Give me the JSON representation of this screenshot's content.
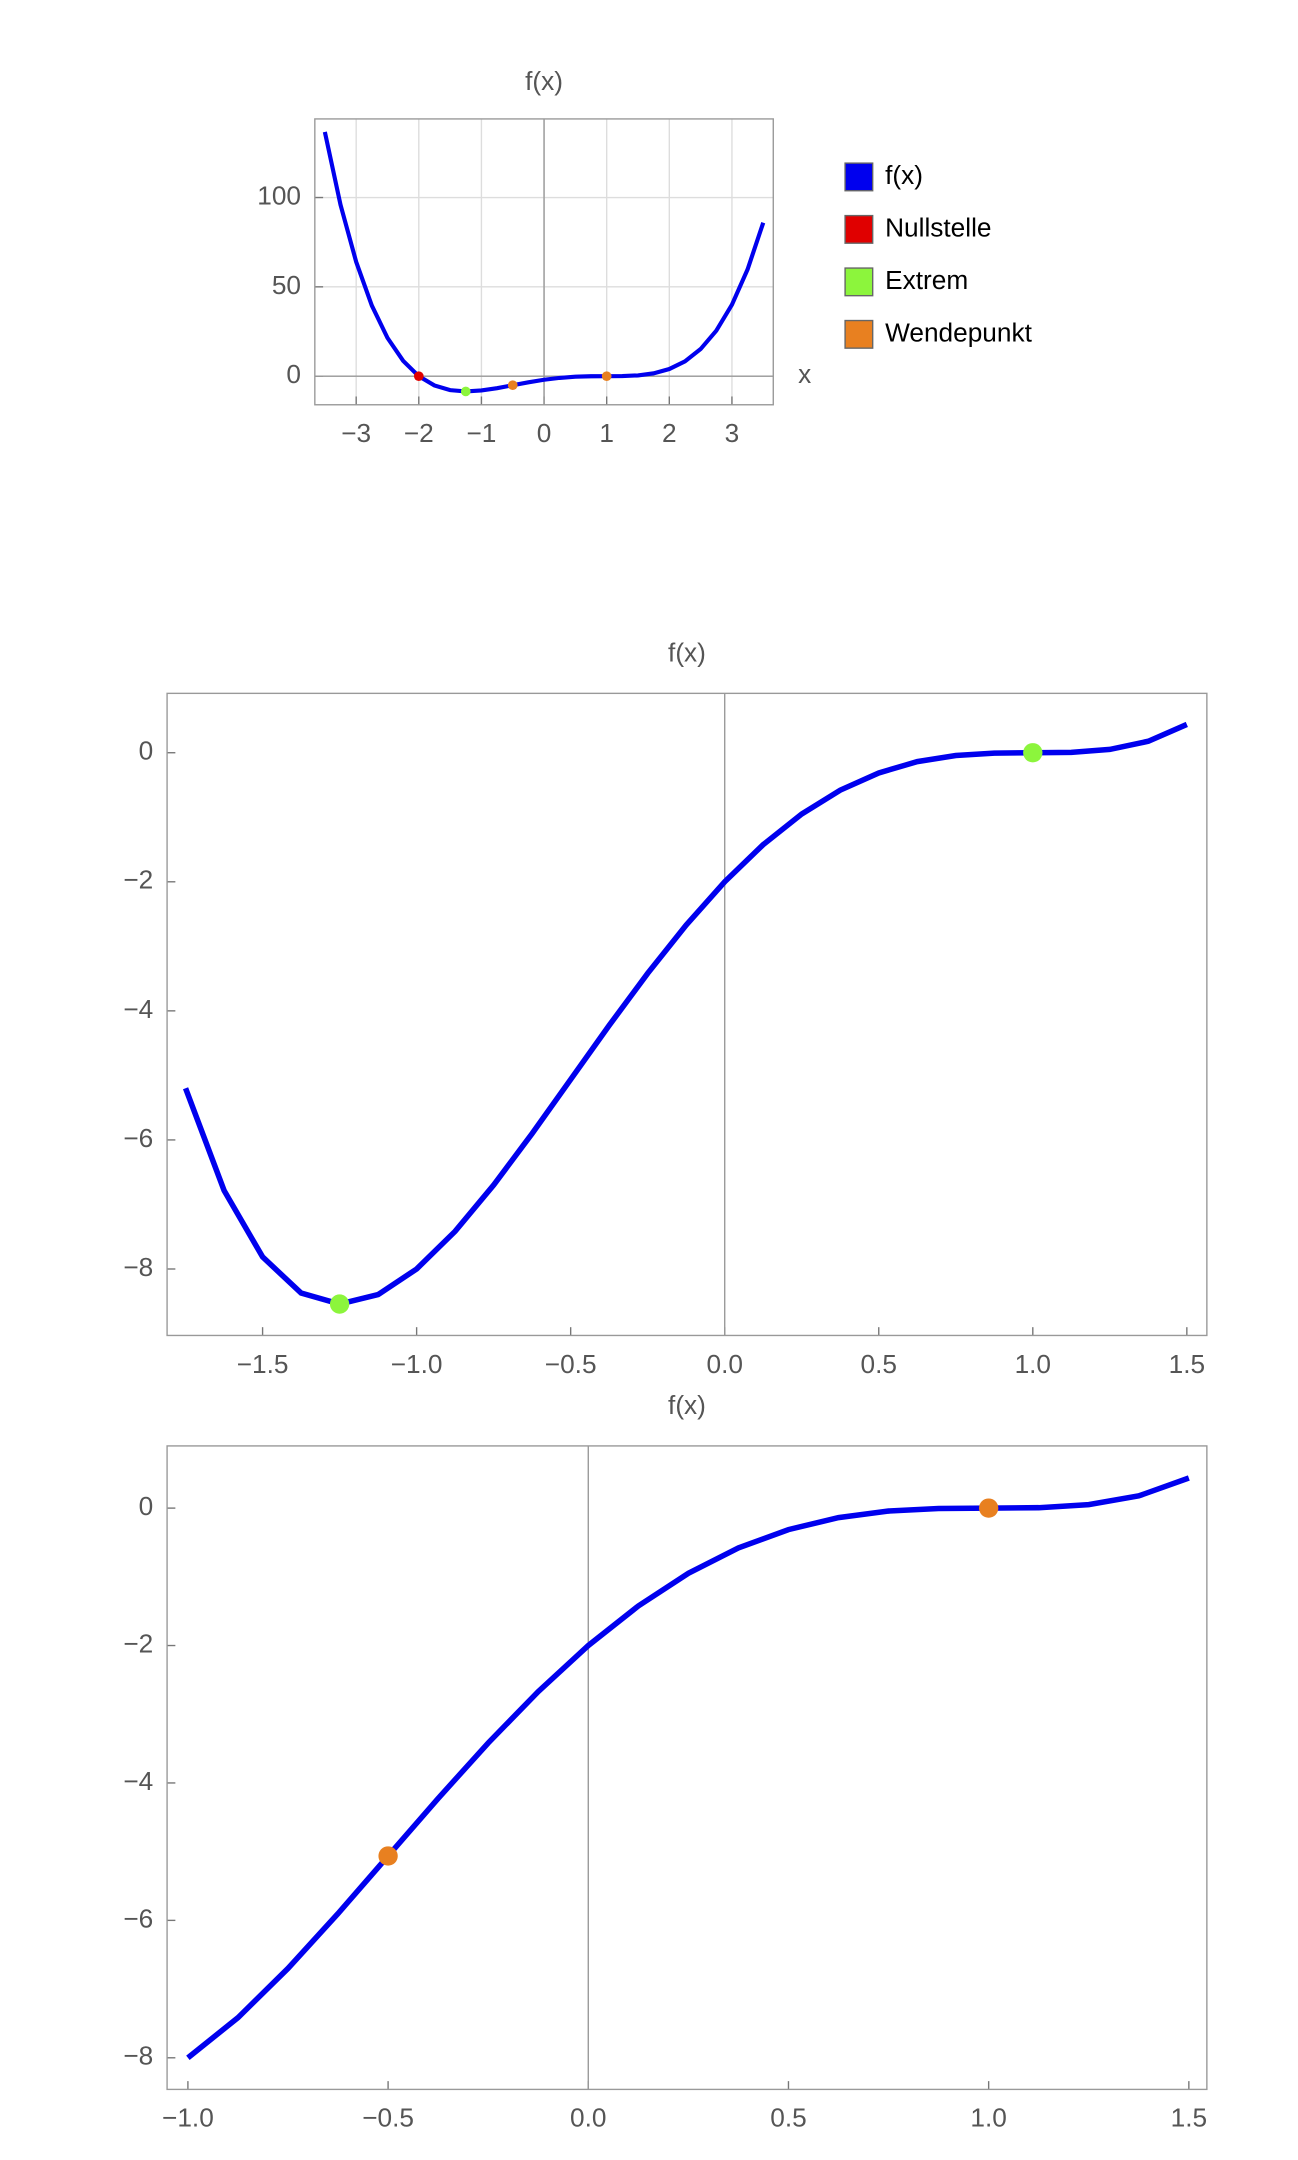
{
  "chart_data": [
    {
      "type": "line",
      "title": "f(x)",
      "x_label": "x",
      "x": [
        -3.5,
        -3.25,
        -3,
        -2.75,
        -2.5,
        -2.25,
        -2,
        -1.75,
        -1.5,
        -1.25,
        -1,
        -0.75,
        -0.5,
        -0.25,
        0,
        0.25,
        0.5,
        0.75,
        1,
        1.25,
        1.5,
        1.75,
        2,
        2.25,
        2.5,
        2.75,
        3,
        3.25,
        3.5
      ],
      "series": [
        {
          "name": "f(x)",
          "color": "#0000ee",
          "values": [
            136.688,
            95.957,
            64,
            39.551,
            21.438,
            8.582,
            0,
            -5.199,
            -7.813,
            -8.543,
            -8,
            -6.699,
            -5.063,
            -3.418,
            -2,
            -0.949,
            -0.313,
            -0.043,
            0,
            0.051,
            0.438,
            1.582,
            4,
            8.301,
            15.188,
            25.457,
            40,
            59.801,
            85.938
          ]
        }
      ],
      "points": [
        {
          "name": "Nullstelle",
          "color": "#e00000",
          "x": [
            -2
          ],
          "values": [
            0
          ]
        },
        {
          "name": "Extrem",
          "color": "#8cf53c",
          "x": [
            -1.25
          ],
          "values": [
            -8.543
          ]
        },
        {
          "name": "Wendepunkt",
          "color": "#e88020",
          "x": [
            -0.5,
            1
          ],
          "values": [
            -5.063,
            0
          ]
        }
      ],
      "xlim": [
        -3.66,
        3.66
      ],
      "ylim": [
        -16,
        144
      ],
      "xticks": [
        {
          "value": -3,
          "label": "−3"
        },
        {
          "value": -2,
          "label": "−2"
        },
        {
          "value": -1,
          "label": "−1"
        },
        0,
        1,
        2,
        3
      ],
      "yticks": [
        0,
        50,
        100
      ],
      "grid": true,
      "legend": "right"
    },
    {
      "type": "line",
      "title": "f(x)",
      "x": [
        -1.75,
        -1.625,
        -1.5,
        -1.375,
        -1.25,
        -1.125,
        -1,
        -0.875,
        -0.75,
        -0.625,
        -0.5,
        -0.375,
        -0.25,
        -0.125,
        0,
        0.125,
        0.25,
        0.375,
        0.5,
        0.625,
        0.75,
        0.875,
        1,
        1.125,
        1.25,
        1.375,
        1.5
      ],
      "series": [
        {
          "color": "#0000ee",
          "values": [
            -5.199,
            -6.783,
            -7.813,
            -8.373,
            -8.543,
            -8.397,
            -8,
            -7.416,
            -6.699,
            -5.9,
            -5.063,
            -4.225,
            -3.418,
            -2.67,
            -2,
            -1.424,
            -0.949,
            -0.58,
            -0.313,
            -0.138,
            -0.043,
            -0.006,
            0,
            0.006,
            0.051,
            0.178,
            0.438
          ]
        }
      ],
      "points": [
        {
          "color": "#8cf53c",
          "x": [
            -1.25,
            1
          ],
          "values": [
            -8.543,
            0
          ]
        }
      ],
      "xlim": [
        -1.81,
        1.565
      ],
      "ylim": [
        -9.03,
        0.92
      ],
      "xticks": [
        {
          "value": -1.5,
          "label": "−1.5"
        },
        {
          "value": -1,
          "label": "−1.0"
        },
        {
          "value": -0.5,
          "label": "−0.5"
        },
        {
          "value": 0,
          "label": "0.0"
        },
        0.5,
        {
          "value": 1,
          "label": "1.0"
        },
        1.5
      ],
      "yticks": [
        {
          "value": -8,
          "label": "−8"
        },
        {
          "value": -6,
          "label": "−6"
        },
        {
          "value": -4,
          "label": "−4"
        },
        {
          "value": -2,
          "label": "−2"
        },
        0
      ],
      "grid": false
    },
    {
      "type": "line",
      "title": "f(x)",
      "x": [
        -1,
        -0.875,
        -0.75,
        -0.625,
        -0.5,
        -0.375,
        -0.25,
        -0.125,
        0,
        0.125,
        0.25,
        0.375,
        0.5,
        0.625,
        0.75,
        0.875,
        1,
        1.125,
        1.25,
        1.375,
        1.5
      ],
      "series": [
        {
          "color": "#0000ee",
          "values": [
            -8,
            -7.416,
            -6.699,
            -5.9,
            -5.063,
            -4.225,
            -3.418,
            -2.67,
            -2,
            -1.424,
            -0.949,
            -0.58,
            -0.313,
            -0.138,
            -0.043,
            -0.006,
            0,
            0.006,
            0.051,
            0.178,
            0.438
          ]
        }
      ],
      "points": [
        {
          "color": "#e88020",
          "x": [
            -0.5,
            1
          ],
          "values": [
            -5.063,
            0
          ]
        }
      ],
      "xlim": [
        -1.052,
        1.545
      ],
      "ylim": [
        -8.46,
        0.905
      ],
      "xticks": [
        {
          "value": -1,
          "label": "−1.0"
        },
        {
          "value": -0.5,
          "label": "−0.5"
        },
        {
          "value": 0,
          "label": "0.0"
        },
        0.5,
        {
          "value": 1,
          "label": "1.0"
        },
        1.5
      ],
      "yticks": [
        {
          "value": -8,
          "label": "−8"
        },
        {
          "value": -6,
          "label": "−6"
        },
        {
          "value": -4,
          "label": "−4"
        },
        {
          "value": -2,
          "label": "−2"
        },
        0
      ],
      "grid": false
    }
  ]
}
